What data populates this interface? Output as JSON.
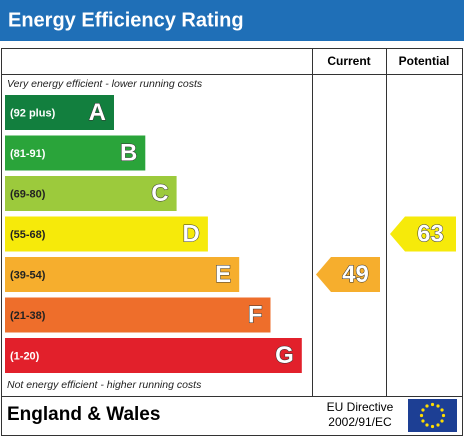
{
  "header": {
    "title": "Energy Efficiency Rating"
  },
  "table": {
    "columns": [
      "Current",
      "Potential"
    ],
    "top_note": "Very energy efficient - lower running costs",
    "bottom_note": "Not energy efficient - higher running costs",
    "bands": [
      {
        "range": "(92 plus)",
        "letter": "A",
        "color": "#127f3e"
      },
      {
        "range": "(81-91)",
        "letter": "B",
        "color": "#2aa43a"
      },
      {
        "range": "(69-80)",
        "letter": "C",
        "color": "#9cca3c"
      },
      {
        "range": "(55-68)",
        "letter": "D",
        "color": "#f6ea0a"
      },
      {
        "range": "(39-54)",
        "letter": "E",
        "color": "#f6ae2d"
      },
      {
        "range": "(21-38)",
        "letter": "F",
        "color": "#ee6e2b"
      },
      {
        "range": "(1-20)",
        "letter": "G",
        "color": "#e2202b"
      }
    ],
    "current": 49,
    "potential": 63
  },
  "footer": {
    "region": "England & Wales",
    "directive": [
      "EU Directive",
      "2002/91/EC"
    ]
  }
}
